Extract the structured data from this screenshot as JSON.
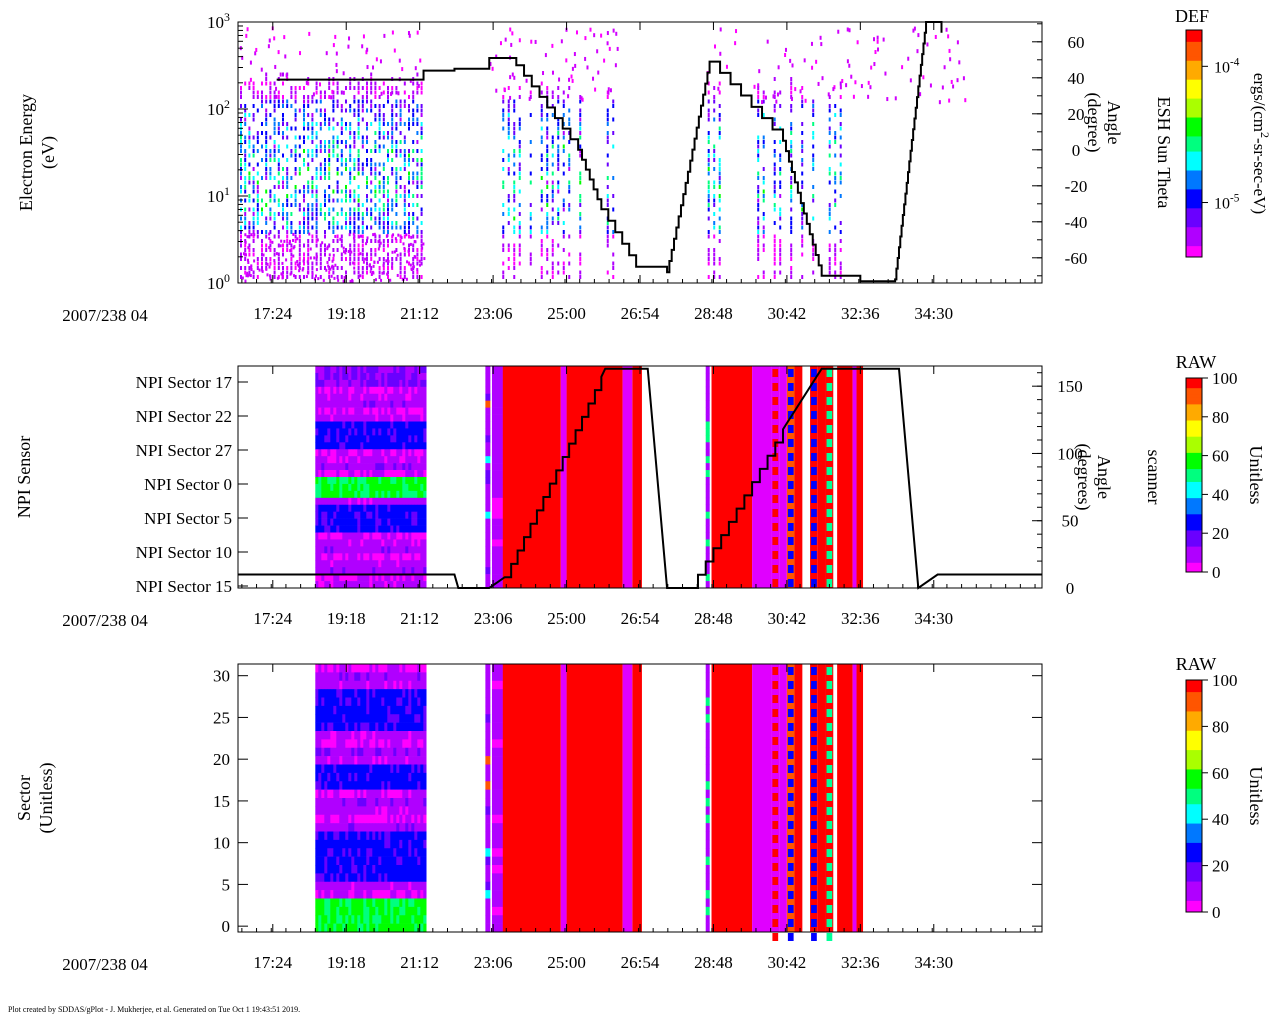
{
  "colors": {
    "spectrum": [
      "#ff00ff",
      "#b000ff",
      "#6a00ff",
      "#0000ff",
      "#0078ff",
      "#00ffff",
      "#00ff7f",
      "#00ff00",
      "#aaff00",
      "#ffff00",
      "#ffaa00",
      "#ff5500",
      "#ff0000"
    ],
    "line": "#000000",
    "background": "#ffffff"
  },
  "footer": "Plot created by SDDAS/gPlot - J. Mukherjee, et al.  Generated on Tue Oct 1 19:43:51 2019.",
  "chart_data": [
    {
      "type": "heatmap",
      "id": "electron",
      "date_label": "2007/238 04",
      "ylabel_lines": [
        "Electron Energy",
        "(eV)"
      ],
      "y_scale": "log",
      "ylim": [
        1,
        1000
      ],
      "y_ticks": [
        {
          "value": 1,
          "base": "10",
          "exp": "0"
        },
        {
          "value": 10,
          "base": "10",
          "exp": "1"
        },
        {
          "value": 100,
          "base": "10",
          "exp": "2"
        },
        {
          "value": 1000,
          "base": "10",
          "exp": "3"
        }
      ],
      "xlim": [
        16.5,
        37.3
      ],
      "x_ticks": [
        "17:24",
        "19:18",
        "21:12",
        "23:06",
        "25:00",
        "26:54",
        "28:48",
        "30:42",
        "32:36",
        "34:30"
      ],
      "x_tick_values": [
        17.4,
        19.3,
        21.2,
        23.1,
        25.0,
        26.9,
        28.8,
        30.7,
        32.6,
        34.5
      ],
      "right_axis": {
        "label_lines": [
          "ESH Sun Theta",
          "Angle",
          "(degree)"
        ],
        "ylim": [
          -74,
          71
        ],
        "ticks": [
          60,
          40,
          20,
          0,
          -20,
          -40,
          -60
        ]
      },
      "colorbar": {
        "title": "DEF",
        "label": "ergs/(cm²-sr-sec-eV)",
        "label_main": "ergs/(cm",
        "label_sup": "2",
        "label_end": "-sr-sec-eV)",
        "ticks": [
          {
            "base": "10",
            "exp": "-4",
            "frac": 0.84
          },
          {
            "base": "10",
            "exp": "-5",
            "frac": 0.24
          }
        ]
      },
      "data_segments": [
        {
          "t0": 16.5,
          "t1": 21.3,
          "e_lo": 1,
          "e_hi": 180
        },
        {
          "t0": 23.0,
          "t1": 26.3,
          "e_lo": 1.4,
          "e_hi": 150
        },
        {
          "t0": 28.6,
          "t1": 32.1,
          "e_lo": 2,
          "e_hi": 180
        }
      ],
      "series": [
        {
          "name": "ESH Sun Theta angle",
          "x": [
            17.5,
            21.3,
            22.1,
            23.0,
            23.7,
            25.3,
            25.9,
            26.8,
            27.6,
            28.2,
            28.7,
            30.6,
            31.6,
            32.6,
            33.5,
            34.3,
            34.7
          ],
          "y": [
            39,
            44,
            45,
            51,
            47,
            0,
            -33,
            -65,
            -68,
            -6,
            49,
            5,
            -70,
            -73,
            -72,
            71,
            65
          ]
        }
      ]
    },
    {
      "type": "heatmap",
      "id": "npi_sensor",
      "date_label": "2007/238 04",
      "ylabel_lines": [
        "NPI Sensor"
      ],
      "y_ticks": [
        "NPI Sector 17",
        "NPI Sector 22",
        "NPI Sector 27",
        "NPI Sector 0",
        "NPI Sector 5",
        "NPI Sector 10",
        "NPI Sector 15"
      ],
      "xlim": [
        16.5,
        37.3
      ],
      "x_ticks": [
        "17:24",
        "19:18",
        "21:12",
        "23:06",
        "25:00",
        "26:54",
        "28:48",
        "30:42",
        "32:36",
        "34:30"
      ],
      "x_tick_values": [
        17.4,
        19.3,
        21.2,
        23.1,
        25.0,
        26.9,
        28.8,
        30.7,
        32.6,
        34.5
      ],
      "right_axis": {
        "label_lines": [
          "scanner",
          "Angle",
          "(degrees)"
        ],
        "ylim": [
          0,
          165
        ],
        "ticks": [
          150,
          100,
          50,
          0
        ]
      },
      "colorbar": {
        "title": "RAW",
        "label": "Unitless",
        "range": [
          0,
          100
        ],
        "ticks": [
          100,
          80,
          60,
          40,
          20,
          0
        ]
      },
      "series": [
        {
          "name": "scanner angle",
          "x": [
            16.5,
            22.1,
            22.2,
            23.0,
            23.4,
            25.9,
            26.0,
            27.1,
            27.6,
            28.2,
            30.6,
            31.6,
            33.6,
            34.1,
            34.6,
            37.3
          ],
          "y": [
            10,
            10,
            0,
            0,
            8,
            157,
            163,
            163,
            0,
            0,
            118,
            163,
            163,
            0,
            10,
            10
          ]
        }
      ]
    },
    {
      "type": "heatmap",
      "id": "sector",
      "date_label": "2007/238 04",
      "ylabel_lines": [
        "Sector",
        "(Unitless)"
      ],
      "ylim": [
        -0.7,
        31.4
      ],
      "y_ticks": [
        0,
        5,
        10,
        15,
        20,
        25,
        30
      ],
      "xlim": [
        16.5,
        37.3
      ],
      "x_ticks": [
        "17:24",
        "19:18",
        "21:12",
        "23:06",
        "25:00",
        "26:54",
        "28:48",
        "30:42",
        "32:36",
        "34:30"
      ],
      "x_tick_values": [
        17.4,
        19.3,
        21.2,
        23.1,
        25.0,
        26.9,
        28.8,
        30.7,
        32.6,
        34.5
      ],
      "colorbar": {
        "title": "RAW",
        "label": "Unitless",
        "range": [
          0,
          100
        ],
        "ticks": [
          100,
          80,
          60,
          40,
          20,
          0
        ]
      }
    }
  ]
}
